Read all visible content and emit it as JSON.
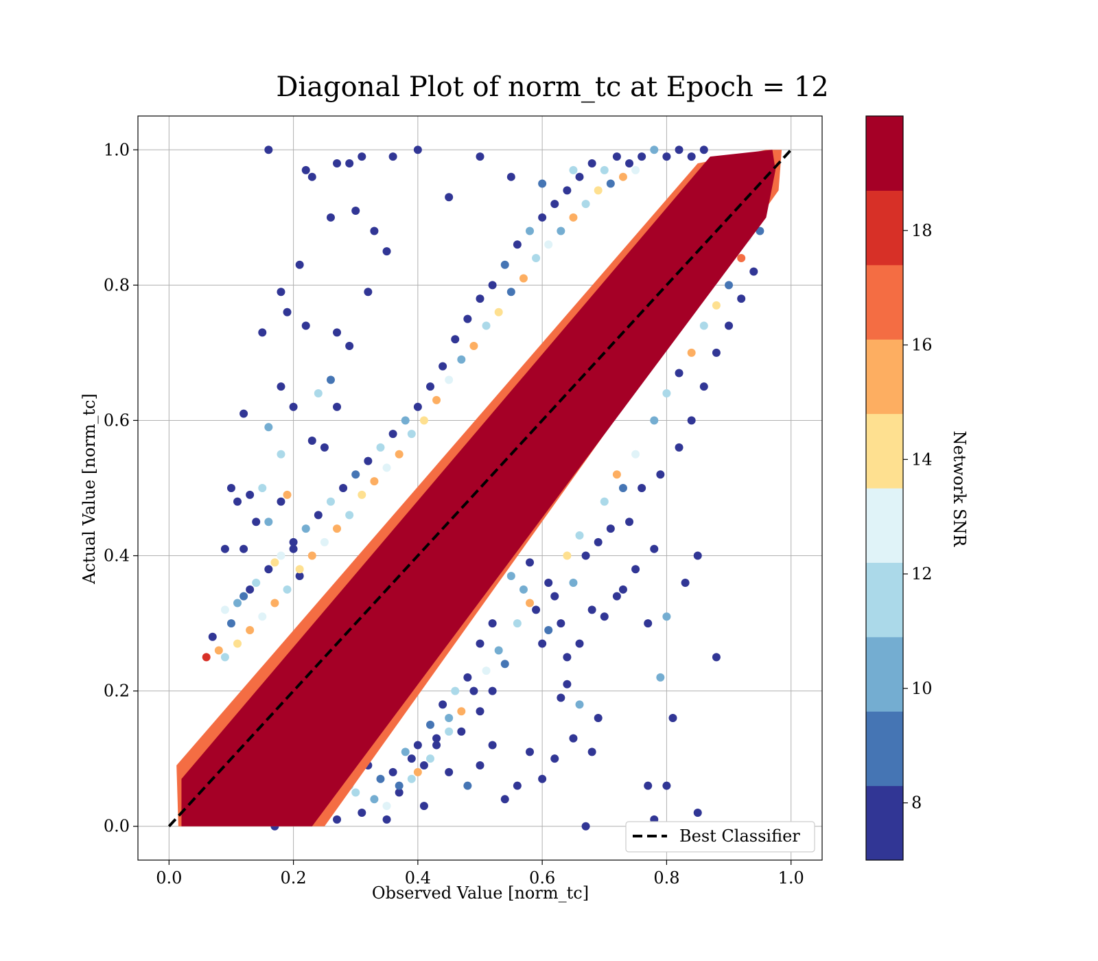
{
  "chart_data": {
    "type": "scatter",
    "title": "Diagonal Plot of norm_tc at Epoch = 12",
    "xlabel": "Observed Value [norm_tc]",
    "ylabel": "Actual Value [norm_tc]",
    "xlim": [
      -0.05,
      1.05
    ],
    "ylim": [
      -0.05,
      1.05
    ],
    "xticks": [
      "0.0",
      "0.2",
      "0.4",
      "0.6",
      "0.8",
      "1.0"
    ],
    "yticks": [
      "0.0",
      "0.2",
      "0.4",
      "0.6",
      "0.8",
      "1.0"
    ],
    "grid": true,
    "series": [
      {
        "name": "Best Classifier",
        "style": "dashed",
        "color": "#000000",
        "x": [
          0,
          1
        ],
        "y": [
          0,
          1
        ]
      }
    ],
    "colorbar": {
      "label": "Network SNR",
      "range": [
        7,
        20
      ],
      "ticks": [
        "8",
        "10",
        "12",
        "14",
        "16",
        "18"
      ],
      "tick_values": [
        8,
        10,
        12,
        14,
        16,
        18
      ],
      "levels": [
        "#313695",
        "#4575b4",
        "#74add1",
        "#abd9e9",
        "#e0f3f8",
        "#fee090",
        "#fdae61",
        "#f46d43",
        "#d73027",
        "#a50026"
      ]
    },
    "legend": {
      "position": "lower-right",
      "entries": [
        "Best Classifier"
      ]
    },
    "scatter_points": [
      [
        0.16,
        1.0,
        7
      ],
      [
        0.23,
        0.96,
        7
      ],
      [
        0.27,
        0.98,
        7
      ],
      [
        0.31,
        0.99,
        7
      ],
      [
        0.36,
        0.99,
        7
      ],
      [
        0.4,
        1.0,
        7
      ],
      [
        0.45,
        0.93,
        7
      ],
      [
        0.5,
        0.99,
        8
      ],
      [
        0.55,
        0.96,
        7
      ],
      [
        0.6,
        0.95,
        9
      ],
      [
        0.65,
        0.97,
        11
      ],
      [
        0.22,
        0.97,
        7
      ],
      [
        0.29,
        0.98,
        7
      ],
      [
        0.3,
        0.91,
        7
      ],
      [
        0.26,
        0.9,
        7
      ],
      [
        0.33,
        0.88,
        7
      ],
      [
        0.35,
        0.85,
        7
      ],
      [
        0.32,
        0.79,
        7
      ],
      [
        0.21,
        0.83,
        7
      ],
      [
        0.18,
        0.79,
        7
      ],
      [
        0.19,
        0.76,
        7
      ],
      [
        0.15,
        0.73,
        7
      ],
      [
        0.22,
        0.74,
        7
      ],
      [
        0.27,
        0.73,
        7
      ],
      [
        0.29,
        0.71,
        7
      ],
      [
        0.26,
        0.66,
        9
      ],
      [
        0.18,
        0.65,
        7
      ],
      [
        0.12,
        0.61,
        7
      ],
      [
        0.2,
        0.62,
        7
      ],
      [
        0.24,
        0.64,
        11
      ],
      [
        0.27,
        0.62,
        7
      ],
      [
        0.16,
        0.59,
        10
      ],
      [
        0.18,
        0.55,
        11
      ],
      [
        0.23,
        0.57,
        7
      ],
      [
        0.25,
        0.56,
        8
      ],
      [
        0.1,
        0.5,
        7
      ],
      [
        0.11,
        0.48,
        7
      ],
      [
        0.15,
        0.5,
        12
      ],
      [
        0.13,
        0.49,
        8
      ],
      [
        0.09,
        0.41,
        7
      ],
      [
        0.12,
        0.41,
        7
      ],
      [
        0.14,
        0.45,
        7
      ],
      [
        0.16,
        0.45,
        10
      ],
      [
        0.17,
        0.39,
        14
      ],
      [
        0.18,
        0.48,
        7
      ],
      [
        0.19,
        0.49,
        15
      ],
      [
        0.2,
        0.41,
        7
      ],
      [
        0.21,
        0.37,
        7
      ],
      [
        0.13,
        0.35,
        8
      ],
      [
        0.11,
        0.33,
        10
      ],
      [
        0.09,
        0.32,
        13
      ],
      [
        0.07,
        0.28,
        7
      ],
      [
        0.1,
        0.3,
        9
      ],
      [
        0.08,
        0.26,
        16
      ],
      [
        0.06,
        0.25,
        18
      ],
      [
        0.88,
        0.25,
        7
      ],
      [
        0.85,
        0.4,
        7
      ],
      [
        0.83,
        0.36,
        7
      ],
      [
        0.78,
        0.41,
        7
      ],
      [
        0.77,
        0.3,
        7
      ],
      [
        0.8,
        0.31,
        10
      ],
      [
        0.75,
        0.38,
        7
      ],
      [
        0.73,
        0.35,
        7
      ],
      [
        0.72,
        0.34,
        7
      ],
      [
        0.7,
        0.31,
        7
      ],
      [
        0.68,
        0.32,
        8
      ],
      [
        0.66,
        0.27,
        7
      ],
      [
        0.64,
        0.25,
        7
      ],
      [
        0.63,
        0.3,
        7
      ],
      [
        0.61,
        0.29,
        9
      ],
      [
        0.6,
        0.27,
        7
      ],
      [
        0.59,
        0.32,
        7
      ],
      [
        0.57,
        0.35,
        10
      ],
      [
        0.81,
        0.16,
        7
      ],
      [
        0.79,
        0.22,
        10
      ],
      [
        0.85,
        0.02,
        7
      ],
      [
        0.8,
        0.06,
        7
      ],
      [
        0.77,
        0.06,
        7
      ],
      [
        0.78,
        0.01,
        7
      ],
      [
        0.69,
        0.16,
        7
      ],
      [
        0.68,
        0.11,
        7
      ],
      [
        0.65,
        0.13,
        7
      ],
      [
        0.64,
        0.21,
        7
      ],
      [
        0.66,
        0.18,
        10
      ],
      [
        0.63,
        0.19,
        7
      ],
      [
        0.62,
        0.1,
        7
      ],
      [
        0.67,
        0.0,
        7
      ],
      [
        0.6,
        0.07,
        7
      ],
      [
        0.58,
        0.11,
        8
      ],
      [
        0.56,
        0.06,
        7
      ],
      [
        0.54,
        0.04,
        7
      ],
      [
        0.52,
        0.12,
        7
      ],
      [
        0.5,
        0.09,
        7
      ],
      [
        0.48,
        0.06,
        9
      ],
      [
        0.45,
        0.08,
        7
      ],
      [
        0.43,
        0.12,
        7
      ],
      [
        0.41,
        0.03,
        7
      ],
      [
        0.39,
        0.1,
        7
      ],
      [
        0.37,
        0.05,
        8
      ],
      [
        0.35,
        0.01,
        7
      ],
      [
        0.33,
        0.04,
        10
      ],
      [
        0.31,
        0.02,
        7
      ],
      [
        0.29,
        0.06,
        12
      ],
      [
        0.27,
        0.01,
        7
      ],
      [
        0.25,
        0.03,
        9
      ],
      [
        0.23,
        0.01,
        7
      ],
      [
        0.21,
        0.04,
        11
      ],
      [
        0.19,
        0.02,
        7
      ],
      [
        0.17,
        0.0,
        7
      ],
      [
        0.5,
        0.17,
        7
      ],
      [
        0.52,
        0.2,
        7
      ],
      [
        0.54,
        0.24,
        9
      ],
      [
        0.47,
        0.14,
        7
      ],
      [
        0.45,
        0.16,
        10
      ],
      [
        0.43,
        0.13,
        7
      ],
      [
        0.41,
        0.09,
        8
      ],
      [
        0.39,
        0.07,
        11
      ],
      [
        0.36,
        0.08,
        7
      ],
      [
        0.34,
        0.07,
        9
      ],
      [
        0.32,
        0.09,
        7
      ],
      [
        0.3,
        0.05,
        12
      ],
      [
        0.56,
        0.42,
        7
      ],
      [
        0.58,
        0.39,
        7
      ],
      [
        0.55,
        0.37,
        10
      ],
      [
        0.52,
        0.3,
        7
      ],
      [
        0.5,
        0.27,
        8
      ],
      [
        0.48,
        0.22,
        7
      ],
      [
        0.46,
        0.2,
        11
      ],
      [
        0.44,
        0.18,
        7
      ],
      [
        0.42,
        0.15,
        9
      ],
      [
        0.4,
        0.12,
        7
      ],
      [
        0.38,
        0.11,
        10
      ],
      [
        0.74,
        0.45,
        7
      ],
      [
        0.76,
        0.5,
        7
      ],
      [
        0.79,
        0.52,
        7
      ],
      [
        0.82,
        0.56,
        7
      ],
      [
        0.84,
        0.6,
        8
      ],
      [
        0.86,
        0.65,
        7
      ],
      [
        0.88,
        0.7,
        7
      ],
      [
        0.9,
        0.74,
        7
      ],
      [
        0.92,
        0.78,
        8
      ],
      [
        0.94,
        0.82,
        7
      ],
      [
        0.95,
        0.88,
        9
      ],
      [
        0.71,
        0.44,
        7
      ],
      [
        0.69,
        0.42,
        8
      ],
      [
        0.67,
        0.4,
        7
      ],
      [
        0.65,
        0.36,
        10
      ],
      [
        0.62,
        0.34,
        7
      ],
      [
        0.72,
        0.52,
        16
      ],
      [
        0.7,
        0.48,
        11
      ],
      [
        0.66,
        0.43,
        12
      ],
      [
        0.64,
        0.4,
        14
      ],
      [
        0.61,
        0.36,
        8
      ],
      [
        0.58,
        0.33,
        15
      ],
      [
        0.56,
        0.3,
        12
      ],
      [
        0.53,
        0.26,
        10
      ],
      [
        0.51,
        0.23,
        13
      ],
      [
        0.49,
        0.2,
        8
      ],
      [
        0.47,
        0.17,
        16
      ],
      [
        0.45,
        0.14,
        11
      ],
      [
        0.42,
        0.1,
        12
      ],
      [
        0.4,
        0.08,
        15
      ],
      [
        0.37,
        0.06,
        9
      ],
      [
        0.35,
        0.03,
        13
      ],
      [
        0.78,
        0.6,
        10
      ],
      [
        0.8,
        0.64,
        12
      ],
      [
        0.82,
        0.67,
        8
      ],
      [
        0.84,
        0.7,
        16
      ],
      [
        0.86,
        0.74,
        11
      ],
      [
        0.88,
        0.77,
        14
      ],
      [
        0.9,
        0.8,
        9
      ],
      [
        0.92,
        0.84,
        17
      ],
      [
        0.93,
        0.87,
        13
      ],
      [
        0.75,
        0.55,
        13
      ],
      [
        0.73,
        0.5,
        9
      ],
      [
        0.44,
        0.68,
        7
      ],
      [
        0.46,
        0.72,
        7
      ],
      [
        0.48,
        0.75,
        8
      ],
      [
        0.5,
        0.78,
        7
      ],
      [
        0.52,
        0.8,
        7
      ],
      [
        0.54,
        0.83,
        9
      ],
      [
        0.56,
        0.86,
        7
      ],
      [
        0.58,
        0.88,
        10
      ],
      [
        0.6,
        0.9,
        7
      ],
      [
        0.62,
        0.92,
        7
      ],
      [
        0.64,
        0.94,
        8
      ],
      [
        0.66,
        0.96,
        7
      ],
      [
        0.68,
        0.98,
        7
      ],
      [
        0.7,
        0.97,
        12
      ],
      [
        0.72,
        0.99,
        7
      ],
      [
        0.74,
        0.98,
        8
      ],
      [
        0.76,
        0.99,
        7
      ],
      [
        0.78,
        1.0,
        10
      ],
      [
        0.8,
        0.99,
        7
      ],
      [
        0.82,
        1.0,
        8
      ],
      [
        0.84,
        0.99,
        7
      ],
      [
        0.86,
        1.0,
        7
      ],
      [
        0.42,
        0.65,
        7
      ],
      [
        0.4,
        0.62,
        8
      ],
      [
        0.38,
        0.6,
        10
      ],
      [
        0.36,
        0.58,
        7
      ],
      [
        0.34,
        0.56,
        11
      ],
      [
        0.32,
        0.54,
        7
      ],
      [
        0.3,
        0.52,
        9
      ],
      [
        0.28,
        0.5,
        7
      ],
      [
        0.26,
        0.48,
        12
      ],
      [
        0.24,
        0.46,
        7
      ],
      [
        0.22,
        0.44,
        10
      ],
      [
        0.2,
        0.42,
        8
      ],
      [
        0.18,
        0.4,
        13
      ],
      [
        0.16,
        0.38,
        7
      ],
      [
        0.14,
        0.36,
        11
      ],
      [
        0.12,
        0.34,
        9
      ],
      [
        0.45,
        0.66,
        13
      ],
      [
        0.47,
        0.69,
        10
      ],
      [
        0.49,
        0.71,
        15
      ],
      [
        0.51,
        0.74,
        11
      ],
      [
        0.53,
        0.76,
        14
      ],
      [
        0.55,
        0.79,
        9
      ],
      [
        0.57,
        0.81,
        16
      ],
      [
        0.59,
        0.84,
        12
      ],
      [
        0.61,
        0.86,
        13
      ],
      [
        0.63,
        0.88,
        10
      ],
      [
        0.65,
        0.9,
        15
      ],
      [
        0.67,
        0.92,
        11
      ],
      [
        0.69,
        0.94,
        14
      ],
      [
        0.71,
        0.95,
        9
      ],
      [
        0.73,
        0.96,
        16
      ],
      [
        0.75,
        0.97,
        13
      ],
      [
        0.43,
        0.63,
        16
      ],
      [
        0.41,
        0.6,
        14
      ],
      [
        0.39,
        0.58,
        12
      ],
      [
        0.37,
        0.55,
        15
      ],
      [
        0.35,
        0.53,
        13
      ],
      [
        0.33,
        0.51,
        16
      ],
      [
        0.31,
        0.49,
        14
      ],
      [
        0.29,
        0.46,
        12
      ],
      [
        0.27,
        0.44,
        15
      ],
      [
        0.25,
        0.42,
        13
      ],
      [
        0.23,
        0.4,
        16
      ],
      [
        0.21,
        0.38,
        14
      ],
      [
        0.19,
        0.35,
        12
      ],
      [
        0.17,
        0.33,
        15
      ],
      [
        0.15,
        0.31,
        13
      ],
      [
        0.13,
        0.29,
        16
      ],
      [
        0.11,
        0.27,
        14
      ],
      [
        0.09,
        0.25,
        12
      ]
    ]
  }
}
